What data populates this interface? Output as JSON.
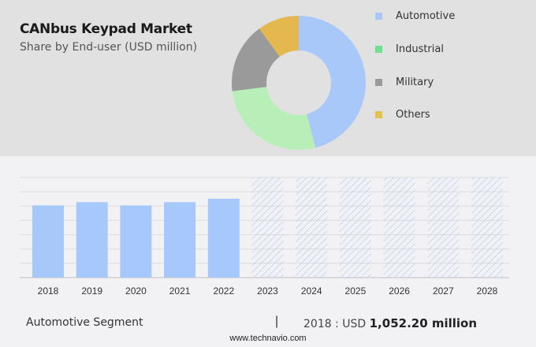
{
  "header": {
    "title": "CANbus Keypad Market",
    "subtitle": "Share by End-user (USD million)"
  },
  "legend": [
    {
      "label": "Automotive",
      "color": "#a8c8fa"
    },
    {
      "label": "Industrial",
      "color": "#6fe08f"
    },
    {
      "label": "Military",
      "color": "#9a9a9a"
    },
    {
      "label": "Others",
      "color": "#e4c04e"
    }
  ],
  "footer": {
    "segment": "Automotive Segment",
    "separator": "|",
    "value_prefix": "2018 : USD ",
    "value_bold": "1,052.20 million",
    "url": "www.technavio.com"
  },
  "chart_data": [
    {
      "type": "pie",
      "variant": "donut",
      "title": "CANbus Keypad Market",
      "subtitle": "Share by End-user (USD million)",
      "categories": [
        "Automotive",
        "Industrial",
        "Military",
        "Others"
      ],
      "values": [
        46,
        27,
        17,
        10
      ],
      "colors": [
        "#a8c8fa",
        "#b8eeb8",
        "#9a9a9a",
        "#e4b84e"
      ],
      "legend_position": "right"
    },
    {
      "type": "bar",
      "title": "Automotive Segment",
      "categories": [
        "2018",
        "2019",
        "2020",
        "2021",
        "2022",
        "2023",
        "2024",
        "2025",
        "2026",
        "2027",
        "2028"
      ],
      "values": [
        1052.2,
        1100,
        1052,
        1100,
        1150,
        null,
        null,
        null,
        null,
        null,
        null
      ],
      "forecast_years": [
        "2023",
        "2024",
        "2025",
        "2026",
        "2027",
        "2028"
      ],
      "forecast_style": "hatched",
      "xlabel": "",
      "ylabel": "",
      "grid": true,
      "annotation": "2018 : USD 1,052.20 million"
    }
  ]
}
